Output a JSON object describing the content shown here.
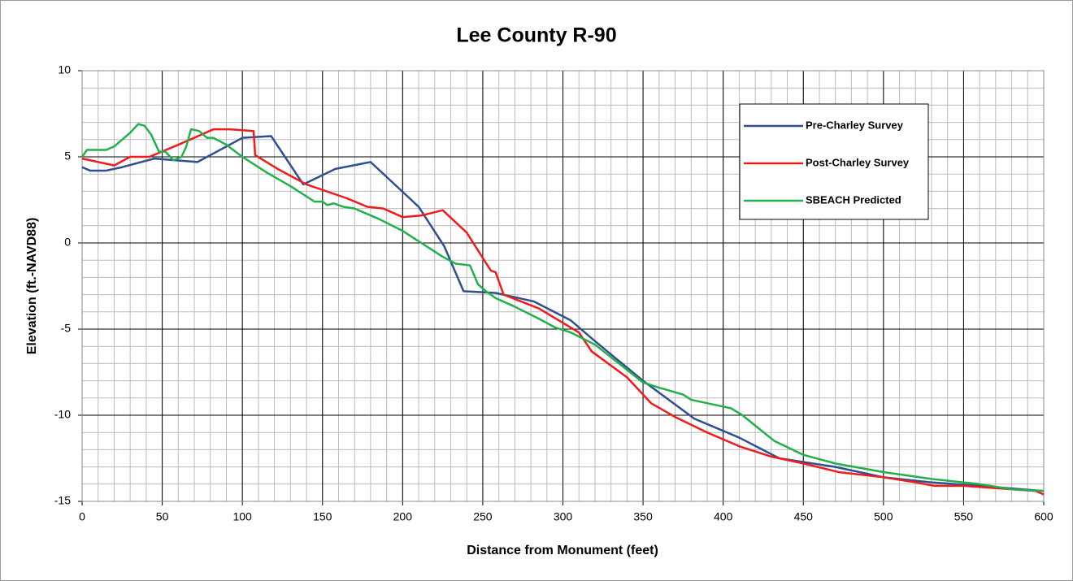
{
  "chart_data": {
    "type": "line",
    "title": "Lee County R-90",
    "x_label": "Distance from Monument (feet)",
    "y_label": "Elevation (ft.-NAVD88)",
    "xlim": [
      0,
      600
    ],
    "xticks": [
      0,
      50,
      100,
      150,
      200,
      250,
      300,
      350,
      400,
      450,
      500,
      550,
      600
    ],
    "ylim": [
      -15,
      10
    ],
    "yticks": [
      -15,
      -10,
      -5,
      0,
      5,
      10
    ],
    "grid": true,
    "minor_grid": {
      "x": 10,
      "y": 1
    },
    "legend": "upper right",
    "series": [
      {
        "name": "Pre-Charley Survey",
        "color": "#2f4f8f",
        "x": [
          0,
          5,
          15,
          25,
          45,
          72,
          100,
          118,
          138,
          158,
          180,
          210,
          226,
          238,
          258,
          282,
          305,
          320,
          350,
          382,
          410,
          435,
          470,
          500,
          530,
          560,
          600
        ],
        "values": [
          4.4,
          4.2,
          4.2,
          4.4,
          4.9,
          4.7,
          6.1,
          6.2,
          3.4,
          4.3,
          4.7,
          2.1,
          -0.2,
          -2.8,
          -2.9,
          -3.4,
          -4.5,
          -5.7,
          -8,
          -10.2,
          -11.3,
          -12.5,
          -13,
          -13.6,
          -13.9,
          -14.1,
          -14.4
        ]
      },
      {
        "name": "Post-Charley Survey",
        "color": "#ee1c1c",
        "x": [
          0,
          10,
          20,
          30,
          42,
          60,
          82,
          92,
          107,
          108,
          122,
          140,
          165,
          178,
          188,
          200,
          212,
          225,
          240,
          255,
          258,
          263,
          285,
          310,
          318,
          340,
          355,
          370,
          390,
          410,
          430,
          450,
          472,
          500,
          520,
          532,
          550,
          580,
          595,
          600
        ],
        "values": [
          4.9,
          4.7,
          4.5,
          5,
          5,
          5.7,
          6.6,
          6.6,
          6.5,
          5.1,
          4.3,
          3.4,
          2.6,
          2.1,
          2.0,
          1.5,
          1.6,
          1.9,
          0.6,
          -1.6,
          -1.7,
          -3,
          -3.8,
          -5.2,
          -6.3,
          -7.8,
          -9.3,
          -10.1,
          -11,
          -11.8,
          -12.4,
          -12.8,
          -13.3,
          -13.6,
          -13.9,
          -14.1,
          -14.1,
          -14.3,
          -14.4,
          -14.6
        ]
      },
      {
        "name": "SBEACH Predicted",
        "color": "#22b04b",
        "x": [
          0,
          3,
          15,
          20,
          30,
          35,
          39,
          43,
          48,
          52,
          57,
          62,
          65,
          68,
          73,
          78,
          82,
          90,
          100,
          115,
          130,
          140,
          145,
          150,
          153,
          157,
          163,
          170,
          185,
          200,
          210,
          225,
          233,
          242,
          247,
          252,
          258,
          270,
          285,
          295,
          305,
          320,
          335,
          350,
          360,
          375,
          380,
          390,
          405,
          412,
          420,
          432,
          450,
          470,
          500,
          530,
          560,
          580,
          600
        ],
        "values": [
          5,
          5.4,
          5.4,
          5.6,
          6.4,
          6.9,
          6.8,
          6.3,
          5.3,
          5.3,
          4.8,
          5,
          5.6,
          6.6,
          6.5,
          6.1,
          6.1,
          5.7,
          5.0,
          4.1,
          3.3,
          2.7,
          2.4,
          2.4,
          2.2,
          2.3,
          2.1,
          2,
          1.4,
          0.7,
          0.1,
          -0.8,
          -1.2,
          -1.3,
          -2.4,
          -2.8,
          -3.2,
          -3.7,
          -4.4,
          -4.9,
          -5.2,
          -5.9,
          -7,
          -8.1,
          -8.4,
          -8.8,
          -9.1,
          -9.3,
          -9.6,
          -10,
          -10.6,
          -11.5,
          -12.3,
          -12.8,
          -13.3,
          -13.7,
          -14.0,
          -14.3,
          -14.4
        ]
      }
    ]
  }
}
